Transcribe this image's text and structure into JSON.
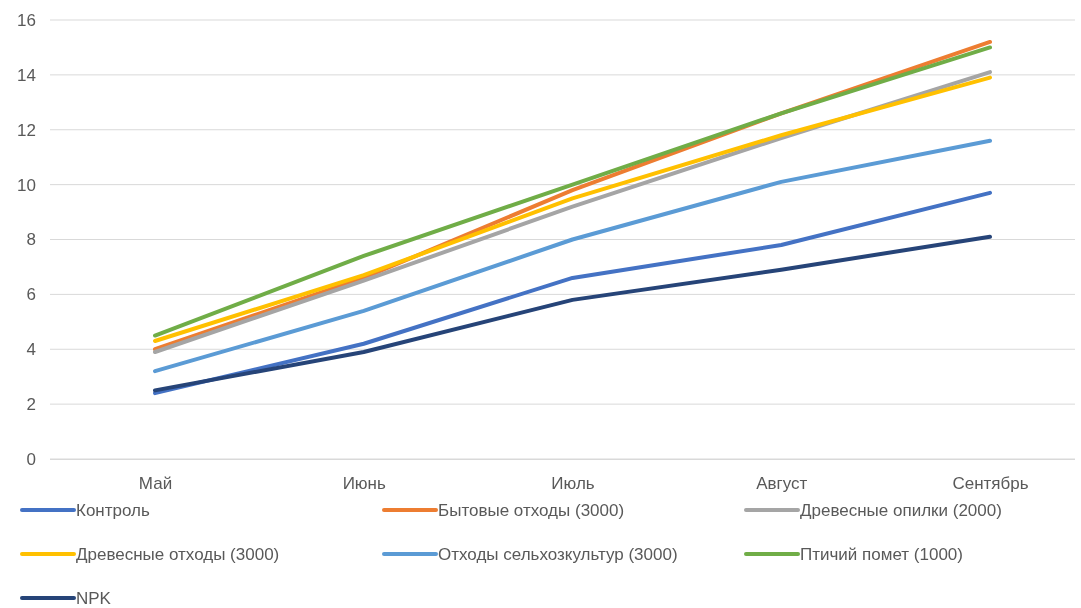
{
  "chart_data": {
    "type": "line",
    "categories": [
      "Май",
      "Июнь",
      "Июль",
      "Август",
      "Сентябрь"
    ],
    "series": [
      {
        "name": "Контроль",
        "color": "#4472c4",
        "values": [
          2.4,
          4.2,
          6.6,
          7.8,
          9.7
        ]
      },
      {
        "name": "Бытовые отходы (3000)",
        "color": "#ed7d31",
        "values": [
          4.0,
          6.6,
          9.8,
          12.6,
          15.2
        ]
      },
      {
        "name": "Древесные опилки (2000)",
        "color": "#a5a5a5",
        "values": [
          3.9,
          6.5,
          9.2,
          11.7,
          14.1
        ]
      },
      {
        "name": "Древесные отходы (3000)",
        "color": "#ffc000",
        "values": [
          4.3,
          6.7,
          9.5,
          11.8,
          13.9
        ]
      },
      {
        "name": "Отходы сельхозкультур (3000)",
        "color": "#5b9bd5",
        "values": [
          3.2,
          5.4,
          8.0,
          10.1,
          11.6
        ]
      },
      {
        "name": "Птичий помет (1000)",
        "color": "#70ad47",
        "values": [
          4.5,
          7.4,
          10.0,
          12.6,
          15.0
        ]
      },
      {
        "name": "NPK",
        "color": "#264478",
        "values": [
          2.5,
          3.9,
          5.8,
          6.9,
          8.1
        ]
      }
    ],
    "ylim": [
      0,
      16
    ],
    "yticks": [
      0,
      2,
      4,
      6,
      8,
      10,
      12,
      14,
      16
    ],
    "grid": "y",
    "legend": "bottom",
    "marker": "none",
    "line_style": "solid"
  }
}
